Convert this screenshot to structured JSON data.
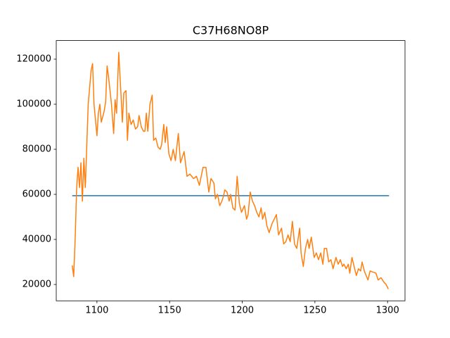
{
  "chart_data": {
    "type": "line",
    "title": "C37H68NO8P",
    "series": [
      {
        "color": "#1f77b4",
        "x": [
          1083,
          1301
        ],
        "values": [
          59400,
          59400
        ]
      },
      {
        "color": "#ff7f0e",
        "x": [
          1083,
          1084,
          1085,
          1086,
          1087,
          1088,
          1089,
          1090,
          1091,
          1092,
          1094,
          1096,
          1097,
          1098,
          1100,
          1101,
          1102,
          1103,
          1105,
          1106,
          1107,
          1108,
          1110,
          1111.5,
          1112.5,
          1113.5,
          1115,
          1116.5,
          1117.5,
          1118.5,
          1120,
          1121,
          1122,
          1123.5,
          1125,
          1126.5,
          1128,
          1129,
          1130.5,
          1132,
          1133,
          1134,
          1135,
          1136.5,
          1138,
          1139,
          1140.5,
          1142,
          1143.5,
          1144.5,
          1146,
          1147,
          1148,
          1149.5,
          1151,
          1152.5,
          1154,
          1156,
          1157.5,
          1160,
          1162,
          1164,
          1166.5,
          1168.5,
          1170.5,
          1173,
          1175,
          1177,
          1178.5,
          1180.5,
          1181.5,
          1183,
          1184.5,
          1186,
          1187,
          1188,
          1189.5,
          1191,
          1192,
          1193.5,
          1195,
          1196.5,
          1198,
          1199.5,
          1201.5,
          1203,
          1204,
          1205.5,
          1207,
          1208.5,
          1210,
          1211.5,
          1213,
          1214,
          1215.5,
          1217,
          1218.5,
          1220.5,
          1222,
          1223.5,
          1225,
          1227,
          1228.5,
          1230,
          1231.5,
          1233,
          1234.5,
          1236,
          1237.5,
          1239.5,
          1240.5,
          1242,
          1243.5,
          1245,
          1246,
          1247.5,
          1249.5,
          1251,
          1252.5,
          1254,
          1255.5,
          1256.5,
          1258,
          1259.5,
          1261,
          1262.5,
          1264.5,
          1266,
          1267.5,
          1269,
          1270,
          1271.5,
          1273,
          1274,
          1275.5,
          1277,
          1278.5,
          1280,
          1281.5,
          1282.5,
          1284,
          1286.5,
          1288,
          1290,
          1292,
          1293.5,
          1295.5,
          1297.5,
          1299,
          1300.5
        ],
        "values": [
          28500,
          23500,
          40000,
          62000,
          72000,
          63000,
          74000,
          57000,
          76000,
          63000,
          100000,
          115000,
          118000,
          100000,
          86000,
          96000,
          100000,
          92000,
          97000,
          101000,
          117000,
          112000,
          100000,
          87000,
          102000,
          96000,
          123000,
          105000,
          92000,
          105000,
          106000,
          84000,
          96000,
          91000,
          93000,
          89000,
          90000,
          95000,
          90000,
          88000,
          88000,
          96000,
          88000,
          100000,
          104000,
          84000,
          85000,
          81000,
          80000,
          82000,
          91000,
          83000,
          90000,
          78000,
          75000,
          80000,
          75000,
          87000,
          74000,
          79000,
          68000,
          69000,
          67000,
          68000,
          64000,
          72000,
          72000,
          61000,
          67000,
          65000,
          58000,
          60000,
          55000,
          57000,
          59000,
          62000,
          61000,
          57000,
          60000,
          54000,
          53000,
          68000,
          56000,
          52000,
          55000,
          49000,
          51000,
          61000,
          57000,
          55000,
          52000,
          50000,
          54000,
          49000,
          52000,
          46000,
          43000,
          47000,
          49000,
          51000,
          42000,
          45000,
          38000,
          39000,
          42000,
          39000,
          48000,
          38000,
          36000,
          45000,
          34000,
          28000,
          36000,
          40000,
          36000,
          41000,
          32000,
          34000,
          31000,
          34000,
          29000,
          36000,
          36000,
          30000,
          31000,
          27000,
          32000,
          29000,
          31000,
          28000,
          29000,
          27000,
          29000,
          25000,
          32000,
          28000,
          24000,
          27000,
          26000,
          30000,
          26000,
          22000,
          26000,
          25500,
          25000,
          22000,
          23000,
          21000,
          20000,
          18000
        ]
      }
    ],
    "xlim": [
      1072,
      1312
    ],
    "xticks": [
      1100,
      1150,
      1200,
      1250,
      1300
    ],
    "ylim": [
      12750,
      128250
    ],
    "yticks": [
      20000,
      40000,
      60000,
      80000,
      100000,
      120000
    ]
  }
}
